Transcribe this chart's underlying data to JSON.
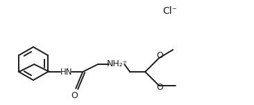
{
  "background": "#ffffff",
  "line_color": "#1a1a1a",
  "line_width": 1.4,
  "font_size": 8.5,
  "cl_label": "Cl⁻",
  "nh2_label": "NH₂⁺",
  "hn_label": "HN",
  "o_label": "O",
  "o_upper_label": "O",
  "o_lower_label": "O",
  "figw": 3.66,
  "figh": 1.52,
  "dpi": 100
}
